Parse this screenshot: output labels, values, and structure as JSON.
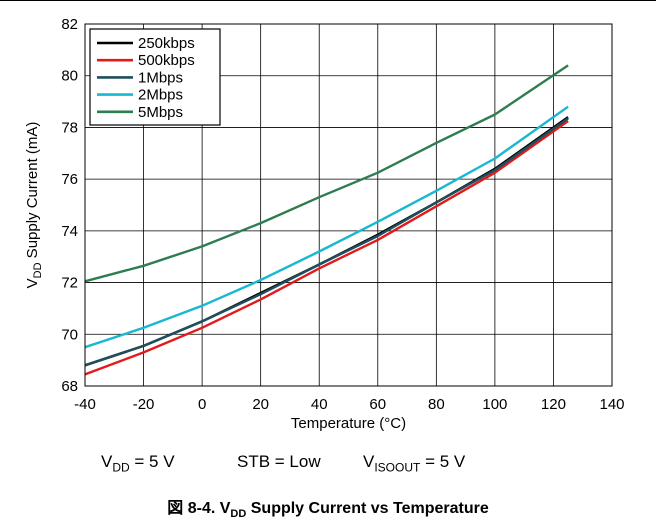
{
  "chart_data": {
    "type": "line",
    "ylabel": "V",
    "ylabel_sub": "DD",
    "ylabel_rest": " Supply Current (mA)",
    "xlabel": "Temperature (°C)",
    "xlim": [
      -40,
      140
    ],
    "ylim": [
      68,
      82
    ],
    "xticks": [
      -40,
      -20,
      0,
      20,
      40,
      60,
      80,
      100,
      120,
      140
    ],
    "yticks": [
      68,
      70,
      72,
      74,
      76,
      78,
      80,
      82
    ],
    "x": [
      -40,
      -20,
      0,
      20,
      40,
      60,
      80,
      100,
      125
    ],
    "grid": true,
    "legend_position": "top-left",
    "series": [
      {
        "name": "250kbps",
        "color": "#000000",
        "values": [
          68.8,
          69.55,
          70.5,
          71.6,
          72.7,
          73.85,
          75.1,
          76.4,
          78.4
        ]
      },
      {
        "name": "500kbps",
        "color": "#e31a1c",
        "values": [
          68.45,
          69.3,
          70.25,
          71.35,
          72.55,
          73.65,
          74.95,
          76.25,
          78.25
        ]
      },
      {
        "name": "1Mbps",
        "color": "#1f4e5c",
        "values": [
          68.8,
          69.55,
          70.5,
          71.55,
          72.7,
          73.8,
          75.1,
          76.35,
          78.35
        ]
      },
      {
        "name": "2Mbps",
        "color": "#17b8d0",
        "values": [
          69.5,
          70.25,
          71.1,
          72.1,
          73.2,
          74.35,
          75.55,
          76.8,
          78.8
        ]
      },
      {
        "name": "5Mbps",
        "color": "#2e7d4f",
        "values": [
          72.05,
          72.65,
          73.4,
          74.3,
          75.3,
          76.25,
          77.4,
          78.5,
          80.4
        ]
      }
    ]
  },
  "conditions": {
    "vdd_v": "V",
    "vdd_sub": "DD",
    "vdd_rest": " = 5 V",
    "stb": "STB = Low",
    "viso_v": "V",
    "viso_sub": "ISOOUT",
    "viso_rest": " = 5 V"
  },
  "caption": {
    "prefix": "図 8-4. V",
    "sub": "DD",
    "rest": " Supply Current vs Temperature"
  }
}
